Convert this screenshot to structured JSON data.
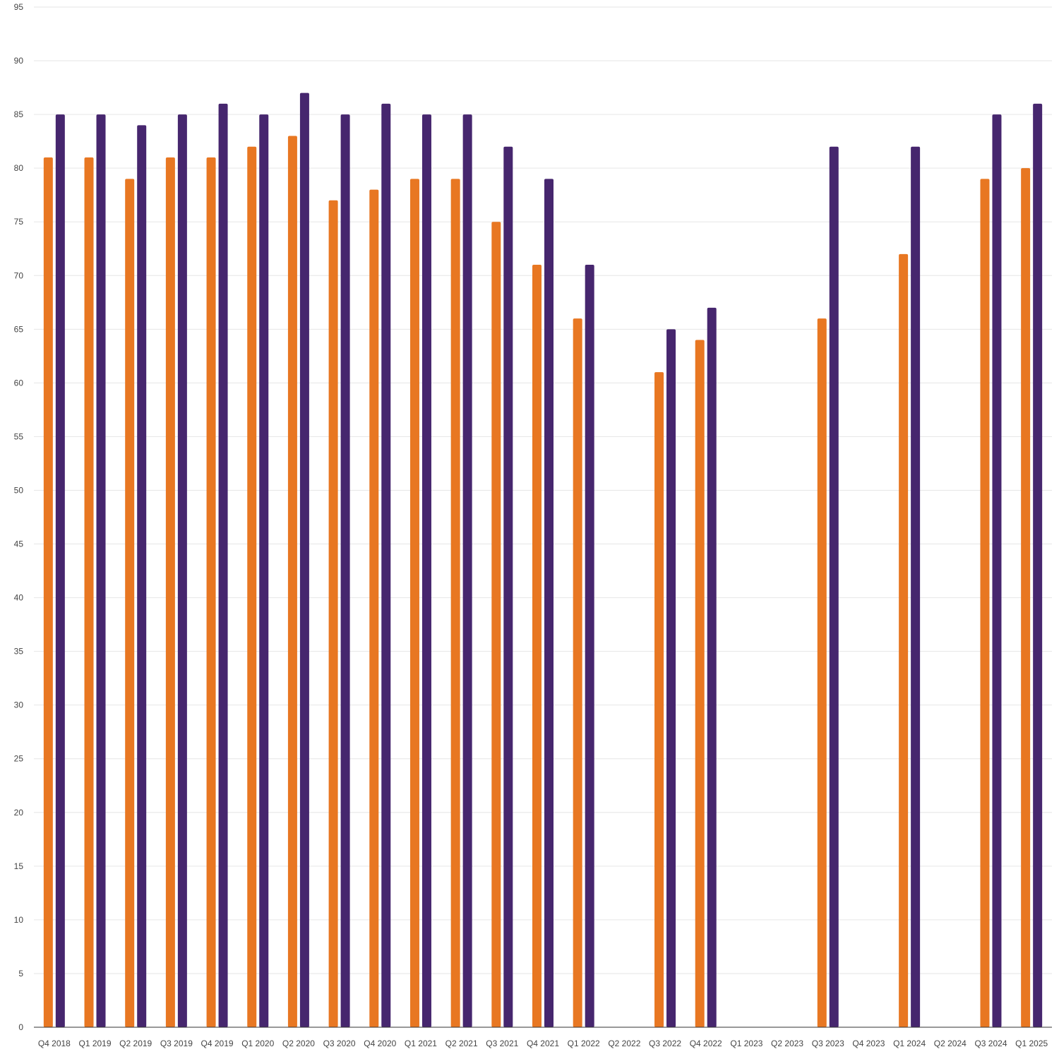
{
  "chart_data": {
    "type": "bar",
    "categories": [
      "Q4 2018",
      "Q1 2019",
      "Q2 2019",
      "Q3 2019",
      "Q4 2019",
      "Q1 2020",
      "Q2 2020",
      "Q3 2020",
      "Q4 2020",
      "Q1 2021",
      "Q2 2021",
      "Q3 2021",
      "Q4 2021",
      "Q1 2022",
      "Q2 2022",
      "Q3 2022",
      "Q4 2022",
      "Q1 2023",
      "Q2 2023",
      "Q3 2023",
      "Q4 2023",
      "Q1 2024",
      "Q2 2024",
      "Q3 2024",
      "Q1 2025"
    ],
    "series": [
      {
        "color": "#e87722",
        "values": [
          81,
          81,
          79,
          81,
          81,
          82,
          83,
          77,
          78,
          79,
          79,
          75,
          71,
          66,
          null,
          61,
          64,
          null,
          null,
          66,
          null,
          72,
          null,
          79,
          80
        ]
      },
      {
        "color": "#46266e",
        "values": [
          85,
          85,
          84,
          85,
          86,
          85,
          87,
          85,
          86,
          85,
          85,
          82,
          79,
          71,
          null,
          65,
          67,
          null,
          null,
          82,
          null,
          82,
          null,
          85,
          86
        ]
      }
    ],
    "ylim": [
      0,
      95
    ],
    "yticks": [
      0,
      5,
      10,
      15,
      20,
      25,
      30,
      35,
      40,
      45,
      50,
      55,
      60,
      65,
      70,
      75,
      80,
      85,
      90,
      95
    ],
    "grid": true,
    "legend": "none"
  }
}
